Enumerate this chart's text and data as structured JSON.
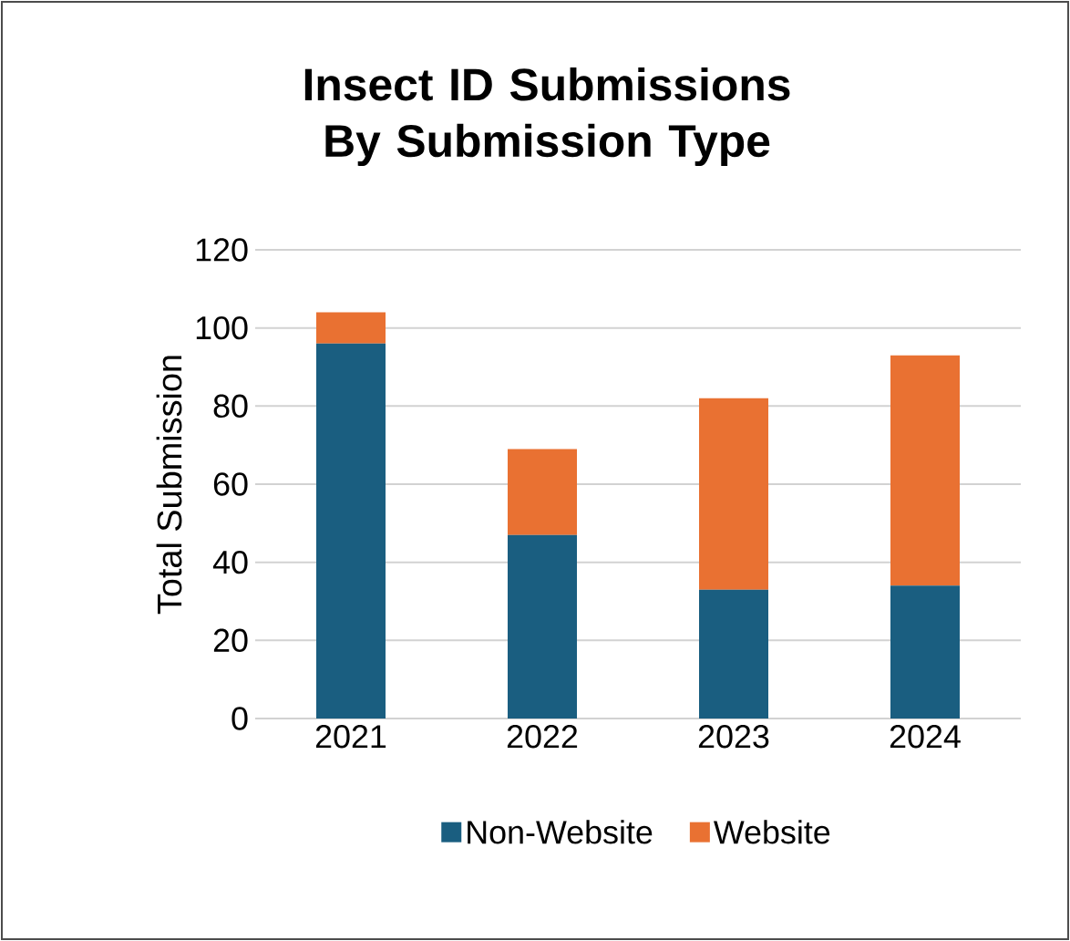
{
  "chart_data": {
    "type": "bar",
    "title": "Insect ID Submissions By Submission Type",
    "ylabel": "Total Submission",
    "categories": [
      "2021",
      "2022",
      "2023",
      "2024"
    ],
    "stacked": true,
    "series": [
      {
        "name": "Non-Website",
        "color": "#1a5e80",
        "values": [
          96,
          47,
          33,
          34
        ]
      },
      {
        "name": "Website",
        "color": "#e97132",
        "values": [
          8,
          22,
          49,
          59
        ]
      }
    ],
    "ylim": [
      0,
      120
    ],
    "yticks": [
      0,
      20,
      40,
      60,
      80,
      100,
      120
    ],
    "grid": "y",
    "legend": "bottom"
  }
}
